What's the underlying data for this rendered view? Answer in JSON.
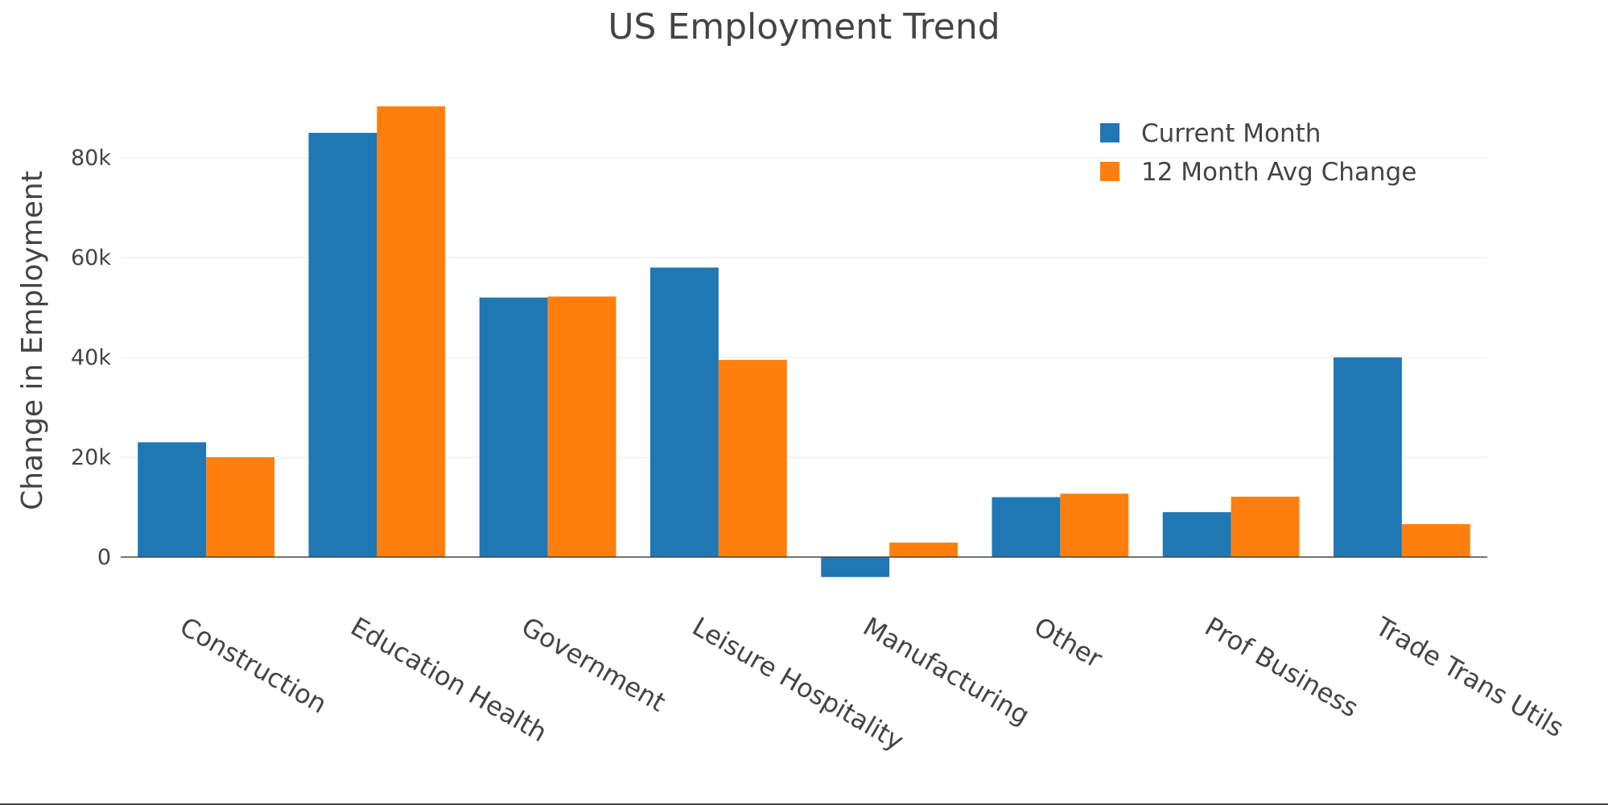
{
  "chart_data": {
    "type": "bar",
    "title": "US Employment Trend",
    "xlabel": "",
    "ylabel": "Change in Employment",
    "ylim": [
      -6000,
      96000
    ],
    "yticks": [
      0,
      20000,
      40000,
      60000,
      80000
    ],
    "ytick_labels": [
      "0",
      "20k",
      "40k",
      "60k",
      "80k"
    ],
    "grid": true,
    "legend_position": "top-right",
    "categories": [
      "Construction",
      "Education Health",
      "Government",
      "Leisure Hospitality",
      "Manufacturing",
      "Other",
      "Prof Business",
      "Trade Trans Utils"
    ],
    "series": [
      {
        "name": "Current Month",
        "color": "#1f77b4",
        "values": [
          23000,
          85000,
          52000,
          58000,
          -4000,
          12000,
          9000,
          40000
        ]
      },
      {
        "name": "12 Month Avg Change",
        "color": "#ff7f0e",
        "values": [
          20000,
          90300,
          52200,
          39500,
          2900,
          12700,
          12100,
          6600
        ]
      }
    ]
  }
}
